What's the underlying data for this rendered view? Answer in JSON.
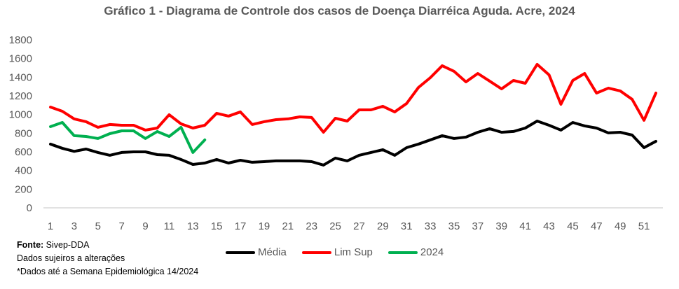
{
  "chart_data": {
    "type": "line",
    "title": "Gráfico 1 - Diagrama de Controle dos casos de  Doença Diarréica Aguda. Acre, 2024",
    "xlabel": "",
    "ylabel": "",
    "ylim": [
      0,
      1800
    ],
    "yticks": [
      "0",
      "200",
      "400",
      "600",
      "800",
      "1000",
      "1200",
      "1400",
      "1600",
      "1800"
    ],
    "xticks": [
      "1",
      "3",
      "5",
      "7",
      "9",
      "11",
      "13",
      "15",
      "17",
      "19",
      "21",
      "23",
      "25",
      "27",
      "29",
      "31",
      "33",
      "35",
      "37",
      "39",
      "41",
      "43",
      "45",
      "47",
      "49",
      "51"
    ],
    "x": [
      1,
      2,
      3,
      4,
      5,
      6,
      7,
      8,
      9,
      10,
      11,
      12,
      13,
      14,
      15,
      16,
      17,
      18,
      19,
      20,
      21,
      22,
      23,
      24,
      25,
      26,
      27,
      28,
      29,
      30,
      31,
      32,
      33,
      34,
      35,
      36,
      37,
      38,
      39,
      40,
      41,
      42,
      43,
      44,
      45,
      46,
      47,
      48,
      49,
      50,
      51,
      52
    ],
    "grid": false,
    "legend_position": "bottom",
    "series": [
      {
        "name": "Média",
        "color": "#000000",
        "values": [
          683,
          638,
          605,
          630,
          593,
          563,
          593,
          600,
          600,
          570,
          563,
          518,
          465,
          480,
          518,
          480,
          510,
          488,
          495,
          503,
          503,
          503,
          495,
          458,
          533,
          503,
          563,
          593,
          623,
          563,
          645,
          683,
          728,
          773,
          743,
          758,
          810,
          848,
          810,
          818,
          855,
          930,
          885,
          833,
          915,
          878,
          855,
          803,
          810,
          780,
          645,
          713
        ]
      },
      {
        "name": "Lim Sup",
        "color": "#ff0000",
        "values": [
          1080,
          1035,
          953,
          923,
          863,
          893,
          885,
          885,
          833,
          855,
          998,
          900,
          855,
          885,
          1013,
          983,
          1028,
          893,
          923,
          945,
          953,
          975,
          968,
          810,
          960,
          930,
          1050,
          1050,
          1088,
          1028,
          1118,
          1290,
          1395,
          1523,
          1463,
          1350,
          1440,
          1358,
          1275,
          1365,
          1335,
          1538,
          1425,
          1110,
          1365,
          1440,
          1230,
          1283,
          1253,
          1163,
          938,
          1230
        ]
      },
      {
        "name": "2024",
        "color": "#00b050",
        "values": [
          870,
          915,
          773,
          765,
          743,
          795,
          825,
          825,
          743,
          818,
          765,
          863,
          593,
          728
        ]
      }
    ]
  },
  "notes": {
    "source_label": "Fonte:",
    "source_value": " Sivep-DDA",
    "line2": " Dados sujeiros a alterações",
    "line3": "*Dados até a Semana Epidemiológica 14/2024"
  }
}
